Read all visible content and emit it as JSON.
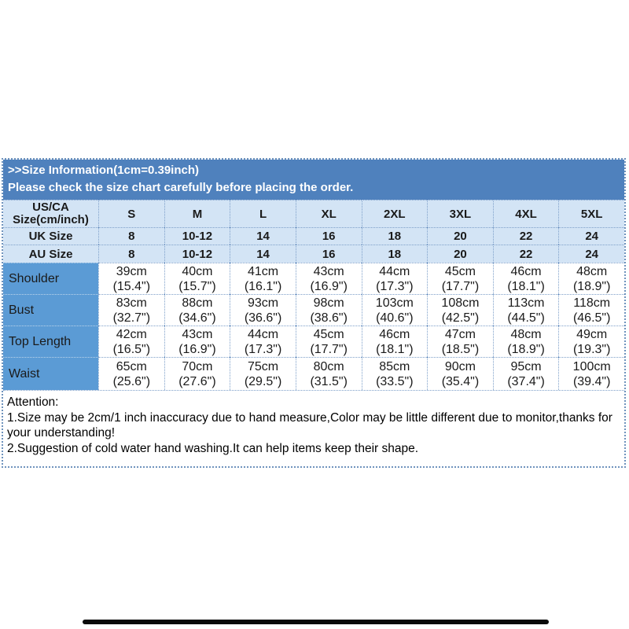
{
  "header": {
    "title_line1": ">>Size Information(1cm=0.39inch)",
    "title_line2": "Please check the size chart carefully before placing the order."
  },
  "size_table": {
    "corner_line1": "US/CA",
    "corner_line2": "Size(cm/inch)",
    "columns": [
      "S",
      "M",
      "L",
      "XL",
      "2XL",
      "3XL",
      "4XL",
      "5XL"
    ],
    "region_rows": [
      {
        "label": "UK Size",
        "values": [
          "8",
          "10-12",
          "14",
          "16",
          "18",
          "20",
          "22",
          "24"
        ]
      },
      {
        "label": "AU Size",
        "values": [
          "8",
          "10-12",
          "14",
          "16",
          "18",
          "20",
          "22",
          "24"
        ]
      }
    ],
    "measurement_rows": [
      {
        "label": "Shoulder",
        "cm": [
          "39cm",
          "40cm",
          "41cm",
          "43cm",
          "44cm",
          "45cm",
          "46cm",
          "48cm"
        ],
        "inch": [
          "(15.4\")",
          "(15.7\")",
          "(16.1\")",
          "(16.9\")",
          "(17.3\")",
          "(17.7\")",
          "(18.1\")",
          "(18.9\")"
        ]
      },
      {
        "label": "Bust",
        "cm": [
          "83cm",
          "88cm",
          "93cm",
          "98cm",
          "103cm",
          "108cm",
          "113cm",
          "118cm"
        ],
        "inch": [
          "(32.7\")",
          "(34.6\")",
          "(36.6\")",
          "(38.6\")",
          "(40.6\")",
          "(42.5\")",
          "(44.5\")",
          "(46.5\")"
        ]
      },
      {
        "label": "Top Length",
        "cm": [
          "42cm",
          "43cm",
          "44cm",
          "45cm",
          "46cm",
          "47cm",
          "48cm",
          "49cm"
        ],
        "inch": [
          "(16.5\")",
          "(16.9\")",
          "(17.3\")",
          "(17.7\")",
          "(18.1\")",
          "(18.5\")",
          "(18.9\")",
          "(19.3\")"
        ]
      },
      {
        "label": "Waist",
        "cm": [
          "65cm",
          "70cm",
          "75cm",
          "80cm",
          "85cm",
          "90cm",
          "95cm",
          "100cm"
        ],
        "inch": [
          "(25.6\")",
          "(27.6\")",
          "(29.5\")",
          "(31.5\")",
          "(33.5\")",
          "(35.4\")",
          "(37.4\")",
          "(39.4\")"
        ]
      }
    ]
  },
  "attention": {
    "heading": "Attention:",
    "note1": "1.Size may be 2cm/1 inch inaccuracy due to hand measure,Color may be little different due to monitor,thanks for your understanding!",
    "note2": "2.Suggestion of cold water hand washing.It can help items keep their shape."
  },
  "colors": {
    "title_bar_blue": "#4f81bd",
    "header_row_blue": "#d3e4f5",
    "label_cell_blue": "#5b9bd5",
    "grid_dotted_border": "#7d9fc9",
    "title_text": "#ffffff",
    "body_text": "#1a1a1a",
    "bottom_bar": "#0a0a0a"
  }
}
